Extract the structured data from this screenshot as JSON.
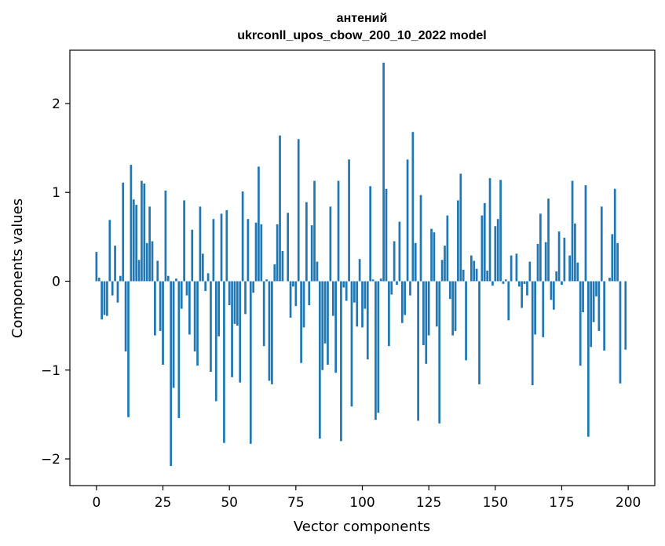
{
  "chart_data": {
    "type": "bar",
    "title": "антений",
    "subtitle": "ukrconll_upos_cbow_200_10_2022 model",
    "xlabel": "Vector components",
    "ylabel": "Components values",
    "xlim": [
      -10,
      210
    ],
    "ylim": [
      -2.3,
      2.6
    ],
    "xticks": [
      0,
      25,
      50,
      75,
      100,
      125,
      150,
      175,
      200
    ],
    "yticks": [
      -2,
      -1,
      0,
      1,
      2
    ],
    "ytick_labels": [
      "−2",
      "−1",
      "0",
      "1",
      "2"
    ],
    "grid": false,
    "legend": "none",
    "bar_color": "#1f77b4",
    "values": [
      0.33,
      0.04,
      -0.43,
      -0.38,
      -0.39,
      0.69,
      -0.16,
      0.4,
      -0.24,
      0.06,
      1.11,
      -0.79,
      -1.53,
      1.31,
      0.92,
      0.86,
      0.24,
      1.13,
      1.1,
      0.43,
      0.84,
      0.45,
      -0.61,
      0.23,
      -0.56,
      -0.94,
      1.02,
      0.06,
      -2.08,
      -1.2,
      0.03,
      -1.54,
      -0.31,
      0.91,
      -0.16,
      -0.6,
      0.58,
      -0.79,
      -0.95,
      0.84,
      0.31,
      -0.11,
      0.09,
      -1.02,
      0.7,
      -1.35,
      -0.62,
      0.76,
      -1.82,
      0.8,
      -0.27,
      -1.08,
      -0.48,
      -0.5,
      -1.14,
      1.01,
      -0.37,
      0.7,
      -1.83,
      -0.13,
      0.66,
      1.29,
      0.64,
      -0.73,
      0.02,
      -1.12,
      -1.16,
      0.19,
      0.64,
      1.64,
      0.34,
      0.0,
      0.77,
      -0.41,
      -0.06,
      -0.28,
      1.6,
      -0.92,
      -0.52,
      0.89,
      -0.27,
      0.63,
      1.13,
      0.22,
      -1.77,
      -1.0,
      -0.7,
      -0.94,
      0.84,
      -0.39,
      -1.03,
      1.13,
      -1.8,
      -0.07,
      -0.22,
      1.37,
      -1.41,
      -0.24,
      -0.51,
      0.25,
      -0.52,
      -0.31,
      -0.88,
      1.07,
      0.02,
      -1.56,
      -1.48,
      0.03,
      2.46,
      1.04,
      -0.73,
      -0.15,
      0.45,
      -0.04,
      0.67,
      -0.47,
      -0.38,
      1.37,
      -0.16,
      1.68,
      0.43,
      -1.57,
      0.97,
      -0.72,
      -0.93,
      -0.61,
      0.59,
      0.55,
      -0.51,
      -1.6,
      0.24,
      0.4,
      0.74,
      -0.2,
      -0.61,
      -0.56,
      0.91,
      1.21,
      0.13,
      -0.89,
      0.0,
      0.29,
      0.23,
      0.14,
      -1.16,
      0.74,
      0.88,
      0.12,
      1.16,
      -0.05,
      0.62,
      0.7,
      1.14,
      -0.03,
      0.02,
      -0.44,
      0.29,
      0.0,
      0.31,
      -0.06,
      -0.3,
      -0.03,
      -0.16,
      0.22,
      -1.17,
      -0.6,
      0.42,
      0.76,
      -0.63,
      0.44,
      0.93,
      -0.21,
      -0.32,
      0.11,
      0.56,
      -0.04,
      0.49,
      0.0,
      0.29,
      1.13,
      0.65,
      0.21,
      -0.95,
      -0.35,
      1.08,
      -1.75,
      -0.74,
      -0.46,
      -0.17,
      -0.56,
      0.84,
      -0.78,
      0.0,
      0.04,
      0.53,
      1.04,
      0.43,
      -1.15,
      0.0,
      -0.77
    ]
  }
}
